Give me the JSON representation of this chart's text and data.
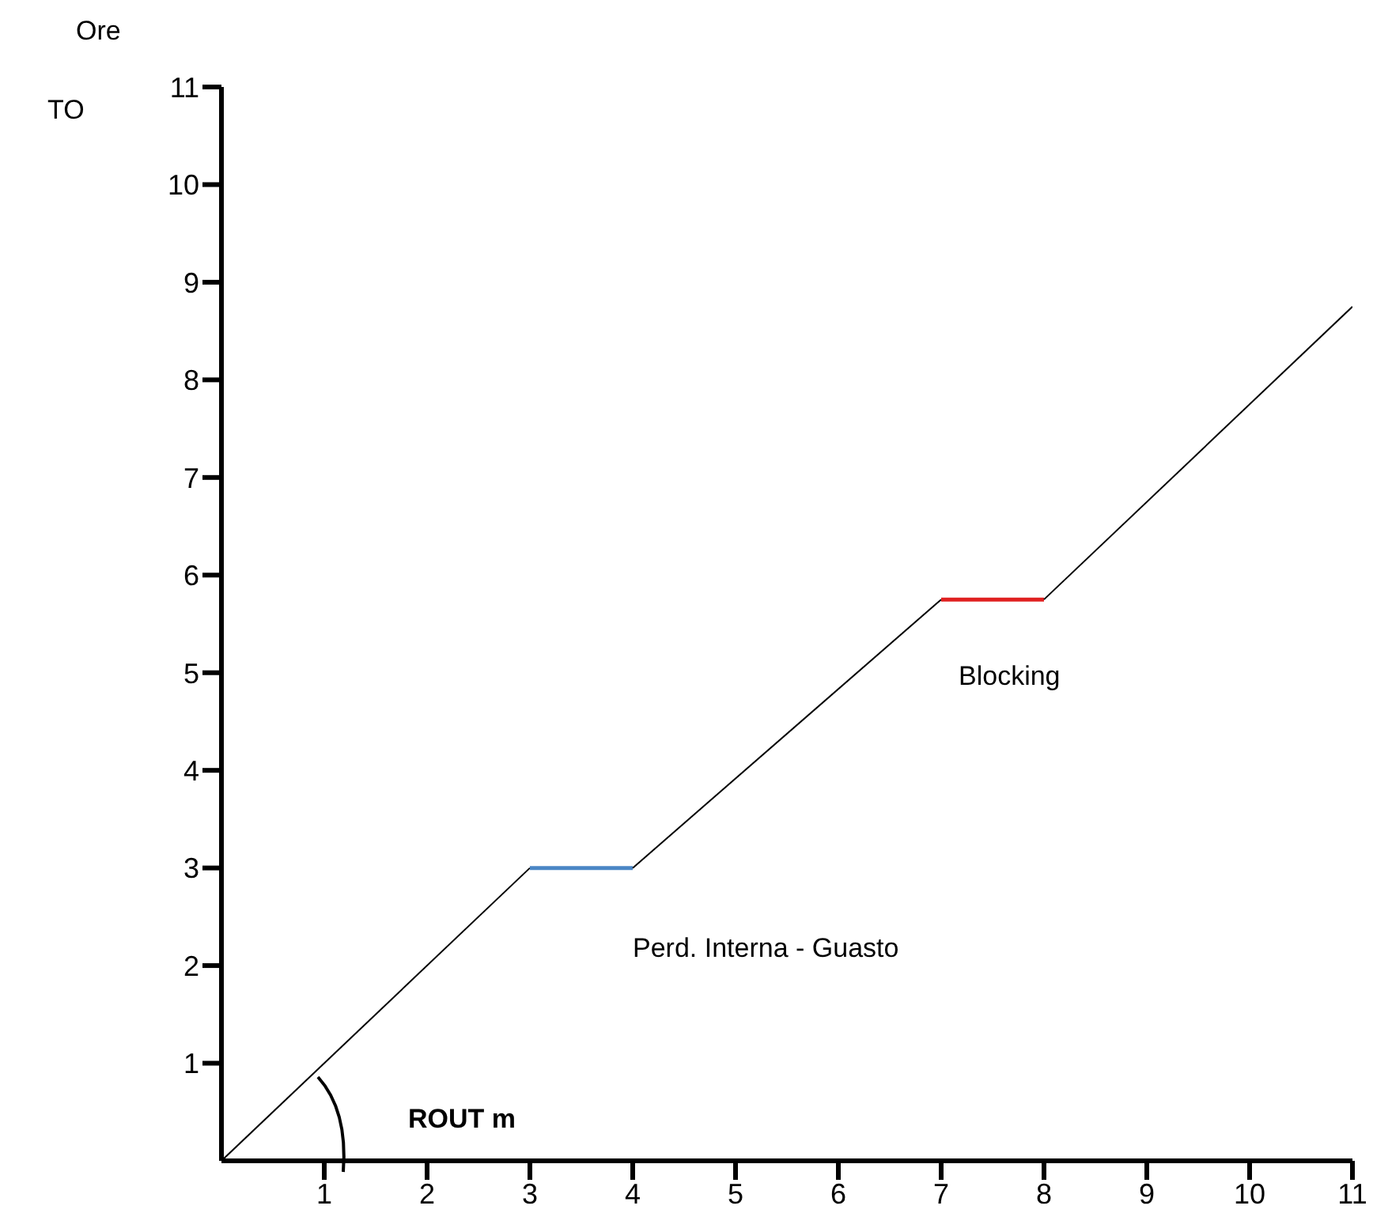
{
  "chart_data": {
    "type": "line",
    "ylabel": "Ore",
    "xlim": [
      0,
      11
    ],
    "xticks": [
      1,
      2,
      3,
      4,
      5,
      6,
      7,
      8,
      9,
      10,
      11
    ],
    "ylim": [
      0,
      11
    ],
    "yticks": [
      1,
      2,
      3,
      4,
      5,
      6,
      7,
      8,
      9,
      10,
      11
    ],
    "marker": "none",
    "line_style": "solid",
    "series": [
      {
        "color": "#000000",
        "x": [
          0,
          3
        ],
        "values": [
          0,
          3
        ]
      },
      {
        "color": "#4a86c5",
        "x": [
          3,
          4
        ],
        "values": [
          3,
          3
        ]
      },
      {
        "color": "#000000",
        "x": [
          4,
          7
        ],
        "values": [
          3,
          5.75
        ]
      },
      {
        "color": "#e02020",
        "x": [
          7,
          8
        ],
        "values": [
          5.75,
          5.75
        ]
      },
      {
        "color": "#000000",
        "x": [
          8,
          11
        ],
        "values": [
          5.75,
          8.75
        ]
      }
    ],
    "annotations": [
      "TO",
      "ROUT m",
      "Perd. Interna - Guasto",
      "Blocking"
    ]
  }
}
